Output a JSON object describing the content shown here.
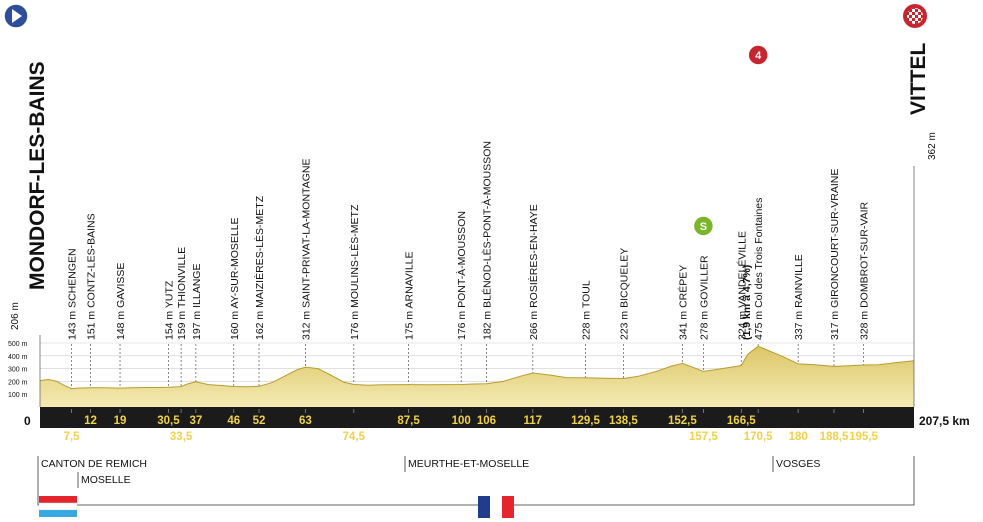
{
  "colors": {
    "profile_fill": "#ead98a",
    "profile_fill_dark": "#c9b24a",
    "profile_edge": "#b89c2e",
    "band": "#1b1b1b",
    "km_label": "#f0d24a",
    "text": "#111111",
    "start_marker": "#2d4e9c",
    "sprint_marker": "#7ab52a",
    "climb_marker": "#c8262e",
    "flag_lux": [
      "#e4252d",
      "#ffffff",
      "#38a8e0"
    ],
    "flag_fra": [
      "#1f3d8c",
      "#ffffff",
      "#e4252d"
    ]
  },
  "icons": {
    "start": "play-triangle-icon",
    "finish": "checkered-flag-icon",
    "sprint": "S",
    "climb": "4"
  },
  "start": {
    "name": "MONDORF-LES-BAINS",
    "alt": "206 m"
  },
  "finish": {
    "name": "VITTEL",
    "alt": "362 m",
    "distance": "207,5 km"
  },
  "zero_label": "0",
  "regions": [
    "CANTON DE REMICH",
    "MOSELLE",
    "MEURTHE-ET-MOSELLE",
    "VOSGES"
  ],
  "chart_data": {
    "type": "area",
    "title": "",
    "xlabel": "",
    "ylabel": "",
    "xlim": [
      0,
      207.5
    ],
    "ylim": [
      0,
      500
    ],
    "y_ticks": [
      {
        "value": 100,
        "label": "100 m"
      },
      {
        "value": 200,
        "label": "200 m"
      },
      {
        "value": 300,
        "label": "300 m"
      },
      {
        "value": 400,
        "label": "400 m"
      },
      {
        "value": 500,
        "label": "500 m"
      }
    ],
    "profile": {
      "x": [
        0,
        2,
        4,
        6,
        7.5,
        9,
        12,
        15,
        19,
        22,
        25,
        28,
        30.5,
        33.5,
        35,
        37,
        40,
        43,
        46,
        49,
        52,
        55,
        58,
        61,
        63,
        66,
        69,
        72,
        74.5,
        78,
        82,
        87.5,
        92,
        96,
        100,
        103,
        106,
        110,
        114,
        117,
        121,
        125,
        129.5,
        134,
        138.5,
        142,
        146,
        150,
        152.5,
        155,
        157.5,
        160,
        164,
        166.5,
        168,
        170.5,
        173,
        176,
        180,
        184,
        188.5,
        192,
        195.5,
        199,
        203,
        207.5
      ],
      "y": [
        206,
        215,
        200,
        165,
        143,
        148,
        151,
        150,
        148,
        150,
        152,
        152,
        154,
        159,
        180,
        197,
        175,
        168,
        160,
        158,
        162,
        190,
        240,
        290,
        312,
        300,
        250,
        195,
        176,
        170,
        174,
        175,
        174,
        175,
        176,
        180,
        182,
        200,
        240,
        266,
        250,
        230,
        228,
        225,
        223,
        240,
        275,
        320,
        341,
        310,
        278,
        290,
        310,
        324,
        410,
        475,
        440,
        400,
        337,
        330,
        317,
        322,
        328,
        330,
        345,
        362
      ]
    },
    "km_ticks": [
      {
        "km": 7.5,
        "label": "7,5",
        "row": 2
      },
      {
        "km": 12,
        "label": "12",
        "row": 1
      },
      {
        "km": 19,
        "label": "19",
        "row": 1
      },
      {
        "km": 30.5,
        "label": "30,5",
        "row": 1
      },
      {
        "km": 33.5,
        "label": "33,5",
        "row": 2
      },
      {
        "km": 37,
        "label": "37",
        "row": 1
      },
      {
        "km": 46,
        "label": "46",
        "row": 1
      },
      {
        "km": 52,
        "label": "52",
        "row": 1
      },
      {
        "km": 63,
        "label": "63",
        "row": 1
      },
      {
        "km": 74.5,
        "label": "74,5",
        "row": 2
      },
      {
        "km": 87.5,
        "label": "87,5",
        "row": 1
      },
      {
        "km": 100,
        "label": "100",
        "row": 1
      },
      {
        "km": 106,
        "label": "106",
        "row": 1
      },
      {
        "km": 117,
        "label": "117",
        "row": 1
      },
      {
        "km": 129.5,
        "label": "129,5",
        "row": 1
      },
      {
        "km": 138.5,
        "label": "138,5",
        "row": 1
      },
      {
        "km": 152.5,
        "label": "152,5",
        "row": 1
      },
      {
        "km": 157.5,
        "label": "157,5",
        "row": 2
      },
      {
        "km": 166.5,
        "label": "166,5",
        "row": 1
      },
      {
        "km": 170.5,
        "label": "170,5",
        "row": 2
      },
      {
        "km": 180,
        "label": "180",
        "row": 2
      },
      {
        "km": 188.5,
        "label": "188,5",
        "row": 2
      },
      {
        "km": 195.5,
        "label": "195,5",
        "row": 2
      }
    ],
    "places": [
      {
        "km": 7.5,
        "label": "143 m SCHENGEN"
      },
      {
        "km": 12,
        "label": "151 m CONTZ-LES-BAINS"
      },
      {
        "km": 19,
        "label": "148 m GAVISSE"
      },
      {
        "km": 30.5,
        "label": "154 m YUTZ"
      },
      {
        "km": 33.5,
        "label": "159 m THIONVILLE"
      },
      {
        "km": 37,
        "label": "197 m ILLANGE"
      },
      {
        "km": 46,
        "label": "160 m AY-SUR-MOSELLE"
      },
      {
        "km": 52,
        "label": "162 m MAIZIÈRES-LÈS-METZ"
      },
      {
        "km": 63,
        "label": "312 m SAINT-PRIVAT-LA-MONTAGNE"
      },
      {
        "km": 74.5,
        "label": "176 m MOULINS-LÈS-METZ"
      },
      {
        "km": 87.5,
        "label": "175 m ARNAVILLE"
      },
      {
        "km": 100,
        "label": "176 m PONT-À-MOUSSON"
      },
      {
        "km": 106,
        "label": "182 m BLÉNOD-LÈS-PONT-À-MOUSSON"
      },
      {
        "km": 117,
        "label": "266 m ROSIÈRES-EN-HAYE"
      },
      {
        "km": 129.5,
        "label": "228 m TOUL"
      },
      {
        "km": 138.5,
        "label": "223 m BICQUELEY"
      },
      {
        "km": 152.5,
        "label": "341 m CRÉPEY"
      },
      {
        "km": 157.5,
        "label": "278 m GOVILLER"
      },
      {
        "km": 166.5,
        "label": "324 m VANDELÉVILLE"
      },
      {
        "km": 170.5,
        "label": "475 m Col des Trois Fontaines",
        "extra": "(1,9 km à 4,7%)"
      },
      {
        "km": 180,
        "label": "337 m RAINVILLE"
      },
      {
        "km": 188.5,
        "label": "317 m GIRONCOURT-SUR-VRAINE"
      },
      {
        "km": 195.5,
        "label": "328 m DOMBROT-SUR-VAIR"
      }
    ],
    "sprint": {
      "km": 157.5,
      "label": "S"
    },
    "climb": {
      "km": 170.5,
      "label": "4"
    }
  }
}
